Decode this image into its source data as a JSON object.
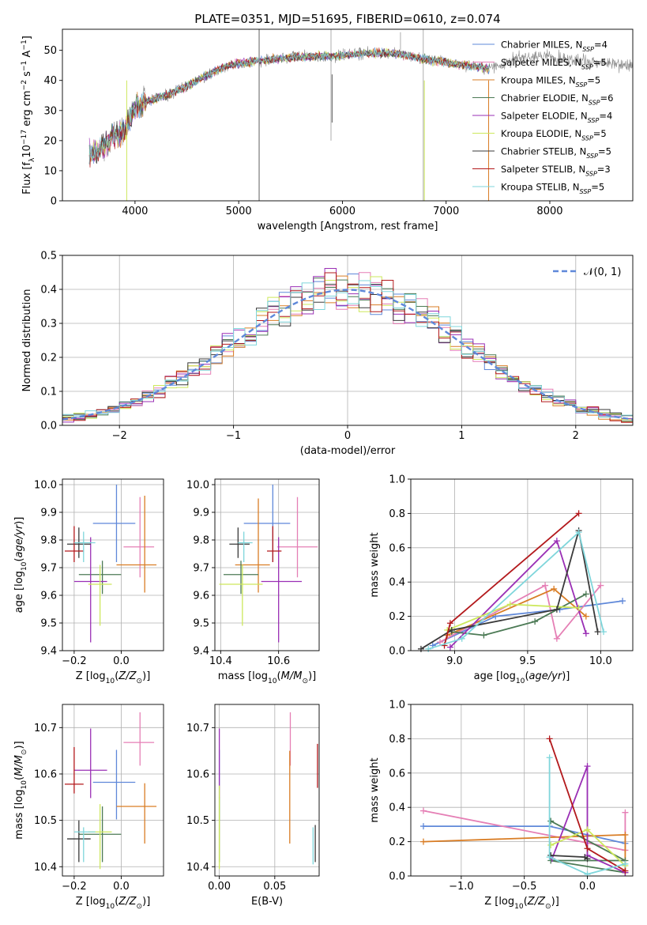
{
  "figure": {
    "title": "PLATE=0351, MJD=51695, FIBERID=0610, z=0.074"
  },
  "series_names": [
    "Chabrier MILES, N$_{SSP}$=4",
    "Salpeter MILES, N$_{SSP}$=5",
    "Kroupa MILES, N$_{SSP}$=5",
    "Chabrier ELODIE, N$_{SSP}$=6",
    "Salpeter ELODIE, N$_{SSP}$=4",
    "Kroupa ELODIE, N$_{SSP}$=5",
    "Chabrier STELIB, N$_{SSP}$=5",
    "Salpeter STELIB, N$_{SSP}$=3",
    "Kroupa STELIB, N$_{SSP}$=5"
  ],
  "series_colors": [
    "#5f88d9",
    "#e57fb5",
    "#d97d25",
    "#4c7a55",
    "#9a2fb5",
    "#cde85c",
    "#3a3a3a",
    "#b3191c",
    "#7fd6db"
  ],
  "chart_data": [
    {
      "id": "spectrum",
      "type": "line",
      "xlabel": "wavelength [Angstrom, rest frame]",
      "ylabel": "Flux [f$_\\lambda$10$^{-17}$ erg cm$^{-2}$ s$^{-1}$ A$^{-1}$]",
      "xlim": [
        3300,
        8800
      ],
      "ylim": [
        0,
        57
      ],
      "xticks": [
        4000,
        5000,
        6000,
        7000,
        8000
      ],
      "yticks": [
        0,
        10,
        20,
        30,
        40,
        50
      ],
      "legend": "upper right",
      "continuum_points": [
        [
          3560,
          15
        ],
        [
          3700,
          18
        ],
        [
          3800,
          22
        ],
        [
          3900,
          23
        ],
        [
          4000,
          31
        ],
        [
          4100,
          33
        ],
        [
          4200,
          34
        ],
        [
          4300,
          35
        ],
        [
          4500,
          38
        ],
        [
          4700,
          42
        ],
        [
          4900,
          45
        ],
        [
          5100,
          46
        ],
        [
          5300,
          47
        ],
        [
          5600,
          48
        ],
        [
          5900,
          48
        ],
        [
          6200,
          49
        ],
        [
          6500,
          49
        ],
        [
          6800,
          47
        ],
        [
          7000,
          46
        ],
        [
          7200,
          45
        ],
        [
          7400,
          44
        ],
        [
          7600,
          46
        ],
        [
          7800,
          48
        ],
        [
          8000,
          48
        ],
        [
          8200,
          47
        ],
        [
          8400,
          46
        ],
        [
          8800,
          45
        ]
      ]
    },
    {
      "id": "residuals",
      "type": "histogram",
      "xlabel": "(data-model)/error",
      "ylabel": "Normed distribution",
      "xlim": [
        -2.5,
        2.5
      ],
      "ylim": [
        0,
        0.5
      ],
      "xticks": [
        -2,
        -1,
        0,
        1,
        2
      ],
      "xtick_labels": [
        "−2",
        "−1",
        "0",
        "1",
        "2"
      ],
      "yticks": [
        0,
        0.1,
        0.2,
        0.3,
        0.4,
        0.5
      ],
      "grid": true,
      "bin_width": 0.1,
      "reference_curve": {
        "label": "𝒩(0, 1)",
        "mean": 0,
        "sigma": 1
      }
    },
    {
      "id": "age-vs-Z",
      "type": "scatter",
      "xlabel": "Z [log$_{10}$($Z/Z_\\odot$)]",
      "ylabel": "age  [log$_{10}$($age/yr$)]",
      "xlim": [
        -0.25,
        0.18
      ],
      "ylim": [
        9.4,
        10.02
      ],
      "xticks": [
        -0.2,
        0.0
      ],
      "xtick_labels": [
        "−0.2",
        "0.0"
      ],
      "yticks": [
        9.4,
        9.5,
        9.6,
        9.7,
        9.8,
        9.9,
        10.0
      ],
      "grid": true,
      "points": [
        {
          "x": -0.02,
          "xerr": [
            0.1,
            0.08
          ],
          "y": 9.86,
          "yerr": [
            0.14,
            0.14
          ]
        },
        {
          "x": 0.08,
          "xerr": [
            0.07,
            0.06
          ],
          "y": 9.775,
          "yerr": [
            0.11,
            0.18
          ]
        },
        {
          "x": 0.1,
          "xerr": [
            0.12,
            0.05
          ],
          "y": 9.71,
          "yerr": [
            0.1,
            0.25
          ]
        },
        {
          "x": -0.08,
          "xerr": [
            0.1,
            0.08
          ],
          "y": 9.675,
          "yerr": [
            0.07,
            0.05
          ]
        },
        {
          "x": -0.13,
          "xerr": [
            0.07,
            0.07
          ],
          "y": 9.65,
          "yerr": [
            0.22,
            0.16
          ]
        },
        {
          "x": -0.09,
          "xerr": [
            0.05,
            0.05
          ],
          "y": 9.64,
          "yerr": [
            0.15,
            0.07
          ]
        },
        {
          "x": -0.18,
          "xerr": [
            0.05,
            0.05
          ],
          "y": 9.785,
          "yerr": [
            0.05,
            0.06
          ]
        },
        {
          "x": -0.2,
          "xerr": [
            0.04,
            0.04
          ],
          "y": 9.76,
          "yerr": [
            0.04,
            0.09
          ]
        },
        {
          "x": -0.16,
          "xerr": [
            0.04,
            0.05
          ],
          "y": 9.79,
          "yerr": [
            0.07,
            0.04
          ]
        }
      ]
    },
    {
      "id": "age-vs-mass",
      "type": "scatter",
      "xlabel": "mass [log$_{10}$($M/M_\\odot$)]",
      "xlim": [
        10.38,
        10.74
      ],
      "ylim": [
        9.4,
        10.02
      ],
      "xticks": [
        10.4,
        10.6
      ],
      "yticks": [
        9.4,
        9.5,
        9.6,
        9.7,
        9.8,
        9.9,
        10.0
      ],
      "grid": true,
      "points": [
        {
          "x": 10.58,
          "xerr": [
            0.1,
            0.06
          ],
          "y": 9.86,
          "yerr": [
            0.14,
            0.14
          ]
        },
        {
          "x": 10.665,
          "xerr": [
            0.07,
            0.07
          ],
          "y": 9.775,
          "yerr": [
            0.11,
            0.18
          ]
        },
        {
          "x": 10.53,
          "xerr": [
            0.08,
            0.04
          ],
          "y": 9.71,
          "yerr": [
            0.1,
            0.24
          ]
        },
        {
          "x": 10.47,
          "xerr": [
            0.06,
            0.06
          ],
          "y": 9.675,
          "yerr": [
            0.07,
            0.05
          ]
        },
        {
          "x": 10.6,
          "xerr": [
            0.06,
            0.08
          ],
          "y": 9.65,
          "yerr": [
            0.22,
            0.16
          ]
        },
        {
          "x": 10.475,
          "xerr": [
            0.08,
            0.07
          ],
          "y": 9.64,
          "yerr": [
            0.15,
            0.07
          ]
        },
        {
          "x": 10.46,
          "xerr": [
            0.03,
            0.04
          ],
          "y": 9.785,
          "yerr": [
            0.05,
            0.06
          ]
        },
        {
          "x": 10.58,
          "xerr": [
            0.02,
            0.03
          ],
          "y": 9.76,
          "yerr": [
            0.04,
            0.09
          ]
        },
        {
          "x": 10.48,
          "xerr": [
            0.02,
            0.03
          ],
          "y": 9.79,
          "yerr": [
            0.07,
            0.04
          ]
        }
      ]
    },
    {
      "id": "weight-vs-age",
      "type": "line",
      "xlabel": "age  [log$_{10}$($age/yr$)]",
      "ylabel": "mass weight",
      "xlim": [
        8.7,
        10.22
      ],
      "ylim": [
        0,
        1.0
      ],
      "xticks": [
        9.0,
        9.5,
        10.0
      ],
      "yticks": [
        0.0,
        0.2,
        0.4,
        0.6,
        0.8,
        1.0
      ],
      "grid": true,
      "series": [
        {
          "x": [
            8.85,
            9.28,
            9.72,
            10.15
          ],
          "y": [
            0.03,
            0.2,
            0.24,
            0.29
          ]
        },
        {
          "x": [
            8.9,
            9.62,
            9.7,
            10.0
          ],
          "y": [
            0.05,
            0.38,
            0.07,
            0.38
          ]
        },
        {
          "x": [
            8.95,
            9.68,
            9.9
          ],
          "y": [
            0.09,
            0.36,
            0.2
          ]
        },
        {
          "x": [
            8.98,
            9.2,
            9.55,
            9.9
          ],
          "y": [
            0.11,
            0.09,
            0.17,
            0.33
          ]
        },
        {
          "x": [
            8.97,
            9.7,
            9.9
          ],
          "y": [
            0.02,
            0.64,
            0.1
          ]
        },
        {
          "x": [
            8.95,
            9.38,
            9.85
          ],
          "y": [
            0.12,
            0.27,
            0.25
          ]
        },
        {
          "x": [
            8.77,
            8.98,
            9.7,
            9.85,
            9.98
          ],
          "y": [
            0.01,
            0.12,
            0.24,
            0.7,
            0.11
          ]
        },
        {
          "x": [
            8.93,
            8.97,
            9.85
          ],
          "y": [
            0.03,
            0.16,
            0.8
          ]
        },
        {
          "x": [
            8.82,
            9.05,
            9.85,
            10.02
          ],
          "y": [
            0.01,
            0.07,
            0.69,
            0.11
          ]
        }
      ]
    },
    {
      "id": "mass-vs-Z",
      "type": "scatter",
      "xlabel": "Z [log$_{10}$($Z/Z_\\odot$)]",
      "ylabel": "mass [log$_{10}$($M/M_\\odot$)]",
      "xlim": [
        -0.25,
        0.18
      ],
      "ylim": [
        10.38,
        10.75
      ],
      "xticks": [
        -0.2,
        0.0
      ],
      "xtick_labels": [
        "−0.2",
        "0.0"
      ],
      "yticks": [
        10.4,
        10.5,
        10.6,
        10.7
      ],
      "grid": true,
      "points": [
        {
          "x": -0.02,
          "xerr": [
            0.1,
            0.08
          ],
          "y": 10.582,
          "yerr": [
            0.08,
            0.07
          ]
        },
        {
          "x": 0.08,
          "xerr": [
            0.07,
            0.06
          ],
          "y": 10.668,
          "yerr": [
            0.05,
            0.065
          ]
        },
        {
          "x": 0.1,
          "xerr": [
            0.12,
            0.05
          ],
          "y": 10.53,
          "yerr": [
            0.08,
            0.05
          ]
        },
        {
          "x": -0.08,
          "xerr": [
            0.1,
            0.08
          ],
          "y": 10.47,
          "yerr": [
            0.06,
            0.06
          ]
        },
        {
          "x": -0.13,
          "xerr": [
            0.07,
            0.07
          ],
          "y": 10.608,
          "yerr": [
            0.06,
            0.09
          ]
        },
        {
          "x": -0.09,
          "xerr": [
            0.05,
            0.05
          ],
          "y": 10.475,
          "yerr": [
            0.08,
            0.06
          ]
        },
        {
          "x": -0.18,
          "xerr": [
            0.05,
            0.05
          ],
          "y": 10.46,
          "yerr": [
            0.05,
            0.04
          ]
        },
        {
          "x": -0.2,
          "xerr": [
            0.04,
            0.04
          ],
          "y": 10.578,
          "yerr": [
            0.02,
            0.08
          ]
        },
        {
          "x": -0.16,
          "xerr": [
            0.04,
            0.05
          ],
          "y": 10.475,
          "yerr": [
            0.065,
            0.01
          ]
        }
      ]
    },
    {
      "id": "mass-vs-EBV",
      "type": "scatter",
      "xlabel": "E(B-V)",
      "xlim": [
        -0.004,
        0.09
      ],
      "ylim": [
        10.38,
        10.75
      ],
      "xticks": [
        0.0,
        0.05
      ],
      "xtick_labels": [
        "0.00",
        "0.05"
      ],
      "yticks": [
        10.4,
        10.5,
        10.6,
        10.7
      ],
      "grid": true,
      "points": [
        {
          "x": 0.0,
          "y": 10.582,
          "yerr": [
            0.08,
            0.07
          ]
        },
        {
          "x": 0.064,
          "y": 10.668,
          "yerr": [
            0.05,
            0.065
          ]
        },
        {
          "x": 0.0635,
          "y": 10.53,
          "yerr": [
            0.08,
            0.12
          ]
        },
        {
          "x": 0.0,
          "y": 10.47,
          "yerr": [
            0.06,
            0.08
          ]
        },
        {
          "x": 0.0,
          "y": 10.608,
          "yerr": [
            0.06,
            0.09
          ]
        },
        {
          "x": 0.0,
          "y": 10.475,
          "yerr": [
            0.08,
            0.1
          ]
        },
        {
          "x": 0.0865,
          "y": 10.46,
          "yerr": [
            0.05,
            0.03
          ]
        },
        {
          "x": 0.0885,
          "y": 10.615,
          "yerr": [
            0.045,
            0.05
          ]
        },
        {
          "x": 0.0845,
          "y": 10.445,
          "yerr": [
            0.04,
            0.04
          ]
        }
      ]
    },
    {
      "id": "weight-vs-Z",
      "type": "line",
      "xlabel": "Z [log$_{10}$($Z/Z_\\odot$)]",
      "ylabel": "mass weight",
      "xlim": [
        -1.4,
        0.36
      ],
      "ylim": [
        0,
        1.0
      ],
      "xticks": [
        -1.0,
        -0.5,
        0.0
      ],
      "xtick_labels": [
        "−1.0",
        "−0.5",
        "0.0"
      ],
      "yticks": [
        0.0,
        0.2,
        0.4,
        0.6,
        0.8,
        1.0
      ],
      "grid": true,
      "series": [
        {
          "x": [
            -1.3,
            -0.3,
            0.3
          ],
          "y": [
            0.29,
            0.29,
            0.19
          ]
        },
        {
          "x": [
            -1.3,
            0.3,
            0.3
          ],
          "y": [
            0.38,
            0.15,
            0.37
          ]
        },
        {
          "x": [
            -1.3,
            0.3,
            0.3
          ],
          "y": [
            0.2,
            0.24,
            0.02
          ]
        },
        {
          "x": [
            -0.29,
            0.3,
            -0.29,
            0.3
          ],
          "y": [
            0.32,
            0.09,
            0.09,
            0.02
          ]
        },
        {
          "x": [
            -0.28,
            0.0,
            0.0,
            0.3
          ],
          "y": [
            0.1,
            0.64,
            0.12,
            0.02
          ]
        },
        {
          "x": [
            -0.29,
            0.0,
            0.3
          ],
          "y": [
            0.18,
            0.27,
            0.06
          ]
        },
        {
          "x": [
            -0.29,
            -0.02,
            0.0
          ],
          "y": [
            0.12,
            0.11,
            0.1
          ]
        },
        {
          "x": [
            -0.3,
            0.0,
            0.3
          ],
          "y": [
            0.8,
            0.16,
            0.03
          ]
        },
        {
          "x": [
            -0.3,
            -0.3,
            0.0,
            0.3
          ],
          "y": [
            0.69,
            0.11,
            0.01,
            0.07
          ]
        }
      ]
    }
  ]
}
